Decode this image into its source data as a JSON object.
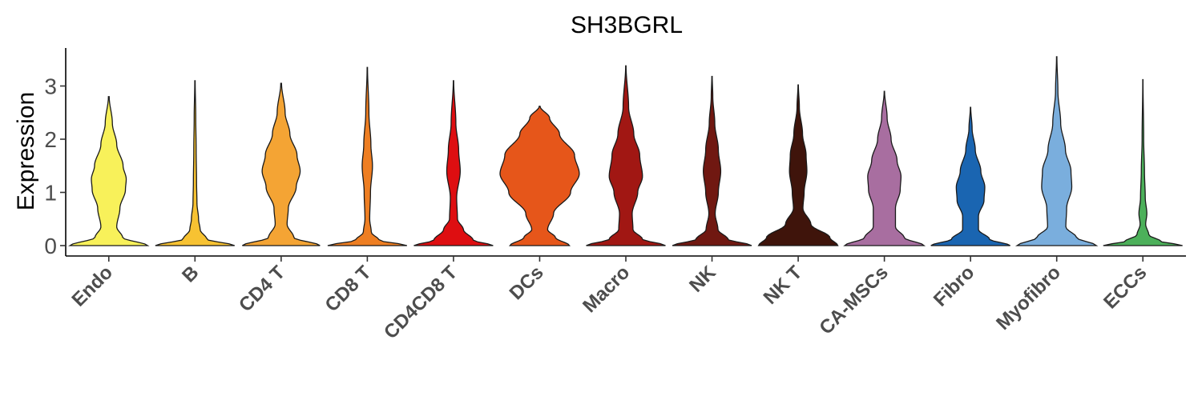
{
  "chart_data": {
    "type": "violin",
    "title": "SH3BGRL",
    "xlabel": "",
    "ylabel": "Expression",
    "ylim": [
      -0.2,
      3.7
    ],
    "yticks": [
      0,
      1,
      2,
      3
    ],
    "grid": false,
    "legend": "none",
    "categories": [
      "Endo",
      "B",
      "CD4 T",
      "CD8 T",
      "CD4CD8 T",
      "DCs",
      "Macro",
      "NK",
      "NK T",
      "CA-MSCs",
      "Fibro",
      "Myofibro",
      "ECCs"
    ],
    "series": [
      {
        "category": "Endo",
        "color": "#F8F15A",
        "max": 2.8,
        "profile": [
          [
            0,
            0.98
          ],
          [
            0.15,
            0.35
          ],
          [
            0.35,
            0.2
          ],
          [
            0.7,
            0.28
          ],
          [
            1.05,
            0.42
          ],
          [
            1.25,
            0.44
          ],
          [
            1.5,
            0.36
          ],
          [
            1.9,
            0.2
          ],
          [
            2.3,
            0.09
          ],
          [
            2.8,
            0.01
          ]
        ]
      },
      {
        "category": "B",
        "color": "#F7C232",
        "max": 3.1,
        "profile": [
          [
            0,
            1.0
          ],
          [
            0.12,
            0.3
          ],
          [
            0.3,
            0.13
          ],
          [
            0.5,
            0.09
          ],
          [
            0.8,
            0.05
          ],
          [
            1.2,
            0.04
          ],
          [
            1.8,
            0.03
          ],
          [
            2.4,
            0.02
          ],
          [
            3.1,
            0.005
          ]
        ]
      },
      {
        "category": "CD4 T",
        "color": "#F4A434",
        "max": 3.05,
        "profile": [
          [
            0,
            0.98
          ],
          [
            0.15,
            0.32
          ],
          [
            0.4,
            0.15
          ],
          [
            0.7,
            0.18
          ],
          [
            1.1,
            0.38
          ],
          [
            1.4,
            0.48
          ],
          [
            1.7,
            0.4
          ],
          [
            2.1,
            0.22
          ],
          [
            2.5,
            0.1
          ],
          [
            3.05,
            0.01
          ]
        ]
      },
      {
        "category": "CD8 T",
        "color": "#EE7E22",
        "max": 3.35,
        "profile": [
          [
            0,
            1.0
          ],
          [
            0.1,
            0.3
          ],
          [
            0.25,
            0.1
          ],
          [
            0.5,
            0.06
          ],
          [
            1.0,
            0.08
          ],
          [
            1.5,
            0.13
          ],
          [
            1.9,
            0.09
          ],
          [
            2.5,
            0.04
          ],
          [
            3.35,
            0.005
          ]
        ]
      },
      {
        "category": "CD4CD8 T",
        "color": "#DE0E11",
        "max": 3.1,
        "profile": [
          [
            0,
            1.0
          ],
          [
            0.1,
            0.5
          ],
          [
            0.3,
            0.25
          ],
          [
            0.5,
            0.1
          ],
          [
            0.9,
            0.08
          ],
          [
            1.4,
            0.17
          ],
          [
            1.8,
            0.13
          ],
          [
            2.3,
            0.06
          ],
          [
            3.1,
            0.005
          ]
        ]
      },
      {
        "category": "DCs",
        "color": "#E6561A",
        "max": 2.62,
        "profile": [
          [
            0,
            0.75
          ],
          [
            0.15,
            0.4
          ],
          [
            0.3,
            0.2
          ],
          [
            0.6,
            0.35
          ],
          [
            1.0,
            0.78
          ],
          [
            1.35,
            1.0
          ],
          [
            1.7,
            0.88
          ],
          [
            2.1,
            0.5
          ],
          [
            2.4,
            0.25
          ],
          [
            2.62,
            0.01
          ]
        ]
      },
      {
        "category": "Macro",
        "color": "#A11713",
        "max": 3.38,
        "profile": [
          [
            0,
            1.0
          ],
          [
            0.12,
            0.42
          ],
          [
            0.3,
            0.18
          ],
          [
            0.6,
            0.16
          ],
          [
            1.0,
            0.3
          ],
          [
            1.3,
            0.42
          ],
          [
            1.7,
            0.35
          ],
          [
            2.1,
            0.2
          ],
          [
            2.6,
            0.07
          ],
          [
            3.38,
            0.005
          ]
        ]
      },
      {
        "category": "NK",
        "color": "#701811",
        "max": 3.18,
        "profile": [
          [
            0,
            1.0
          ],
          [
            0.12,
            0.4
          ],
          [
            0.3,
            0.15
          ],
          [
            0.6,
            0.08
          ],
          [
            1.0,
            0.16
          ],
          [
            1.4,
            0.22
          ],
          [
            1.8,
            0.16
          ],
          [
            2.3,
            0.07
          ],
          [
            2.8,
            0.02
          ],
          [
            3.18,
            0.005
          ]
        ]
      },
      {
        "category": "NK T",
        "color": "#3F140B",
        "max": 3.02,
        "profile": [
          [
            0,
            1.0
          ],
          [
            0.15,
            0.8
          ],
          [
            0.4,
            0.32
          ],
          [
            0.7,
            0.12
          ],
          [
            1.0,
            0.15
          ],
          [
            1.4,
            0.22
          ],
          [
            1.7,
            0.2
          ],
          [
            2.1,
            0.11
          ],
          [
            2.6,
            0.03
          ],
          [
            3.02,
            0.005
          ]
        ]
      },
      {
        "category": "CA-MSCs",
        "color": "#A86EA0",
        "max": 2.9,
        "profile": [
          [
            0,
            1.0
          ],
          [
            0.15,
            0.5
          ],
          [
            0.35,
            0.28
          ],
          [
            0.7,
            0.28
          ],
          [
            1.05,
            0.4
          ],
          [
            1.3,
            0.42
          ],
          [
            1.6,
            0.32
          ],
          [
            2.0,
            0.17
          ],
          [
            2.4,
            0.07
          ],
          [
            2.9,
            0.005
          ]
        ]
      },
      {
        "category": "Fibro",
        "color": "#1A65B1",
        "max": 2.6,
        "profile": [
          [
            0,
            1.0
          ],
          [
            0.12,
            0.48
          ],
          [
            0.3,
            0.2
          ],
          [
            0.55,
            0.2
          ],
          [
            0.85,
            0.34
          ],
          [
            1.1,
            0.36
          ],
          [
            1.4,
            0.26
          ],
          [
            1.8,
            0.12
          ],
          [
            2.2,
            0.04
          ],
          [
            2.6,
            0.005
          ]
        ]
      },
      {
        "category": "Myofibro",
        "color": "#7AAEDD",
        "max": 3.55,
        "profile": [
          [
            0,
            1.0
          ],
          [
            0.15,
            0.5
          ],
          [
            0.35,
            0.23
          ],
          [
            0.7,
            0.25
          ],
          [
            1.1,
            0.38
          ],
          [
            1.4,
            0.36
          ],
          [
            1.8,
            0.22
          ],
          [
            2.3,
            0.1
          ],
          [
            2.9,
            0.03
          ],
          [
            3.55,
            0.005
          ]
        ]
      },
      {
        "category": "ECCs",
        "color": "#4CB05A",
        "max": 3.12,
        "profile": [
          [
            0,
            1.0
          ],
          [
            0.08,
            0.45
          ],
          [
            0.2,
            0.15
          ],
          [
            0.4,
            0.07
          ],
          [
            0.6,
            0.1
          ],
          [
            0.9,
            0.06
          ],
          [
            1.4,
            0.04
          ],
          [
            2.0,
            0.02
          ],
          [
            3.12,
            0.003
          ]
        ]
      }
    ]
  }
}
